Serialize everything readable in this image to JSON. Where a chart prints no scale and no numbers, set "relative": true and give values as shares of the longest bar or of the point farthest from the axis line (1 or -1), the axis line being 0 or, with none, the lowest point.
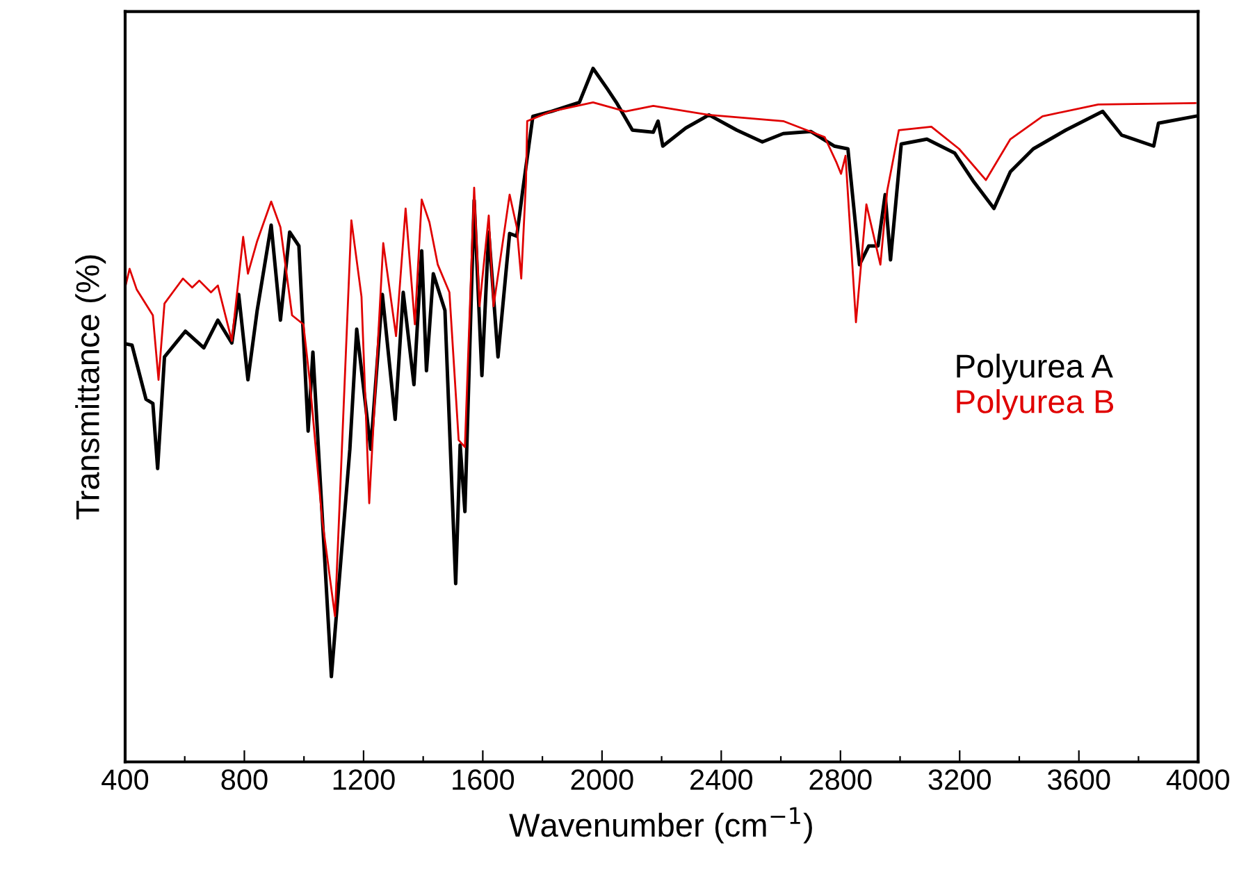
{
  "chart_data": {
    "type": "line",
    "relative": true,
    "xlabel": "Wavenumber (cm$^{−1}$)",
    "ylabel": "Transmittance (%)",
    "xlim": [
      400,
      4000
    ],
    "xticks": [
      400,
      {
        "value": 600,
        "label": null
      },
      800,
      {
        "value": 1000,
        "label": null
      },
      1200,
      {
        "value": 1400,
        "label": null
      },
      1600,
      {
        "value": 1800,
        "label": null
      },
      2000,
      {
        "value": 2200,
        "label": null
      },
      2400,
      {
        "value": 2600,
        "label": null
      },
      2800,
      {
        "value": 3000,
        "label": null
      },
      3200,
      {
        "value": 3400,
        "label": null
      },
      3600,
      {
        "value": 3800,
        "label": null
      },
      4000
    ],
    "legend": "right",
    "grid": false,
    "series": [
      {
        "name": "Polyurea A",
        "color": "#000000",
        "x": [
          400,
          423,
          470,
          493,
          509,
          532,
          602,
          664,
          711,
          758,
          781,
          812,
          843,
          890,
          921,
          952,
          983,
          1014,
          1030,
          1092,
          1154,
          1177,
          1224,
          1263,
          1306,
          1333,
          1369,
          1395,
          1411,
          1434,
          1473,
          1509,
          1524,
          1540,
          1571,
          1597,
          1620,
          1651,
          1690,
          1714,
          1734,
          1768,
          1830,
          1924,
          1970,
          2017,
          2048,
          2102,
          2172,
          2188,
          2204,
          2281,
          2359,
          2452,
          2538,
          2608,
          2701,
          2779,
          2825,
          2864,
          2895,
          2926,
          2950,
          2968,
          3004,
          3090,
          3183,
          3245,
          3315,
          3370,
          3447,
          3556,
          3680,
          3743,
          3851,
          3867,
          3991
        ],
        "values": [
          0.603,
          0.601,
          0.523,
          0.517,
          0.423,
          0.584,
          0.621,
          0.597,
          0.637,
          0.604,
          0.674,
          0.551,
          0.651,
          0.774,
          0.637,
          0.764,
          0.744,
          0.477,
          0.591,
          0.123,
          0.451,
          0.624,
          0.451,
          0.674,
          0.494,
          0.677,
          0.544,
          0.737,
          0.564,
          0.704,
          0.651,
          0.257,
          0.457,
          0.361,
          0.81,
          0.557,
          0.764,
          0.584,
          0.762,
          0.758,
          0.824,
          0.931,
          0.938,
          0.951,
          1.0,
          0.971,
          0.951,
          0.911,
          0.908,
          0.924,
          0.888,
          0.914,
          0.933,
          0.911,
          0.894,
          0.906,
          0.909,
          0.888,
          0.884,
          0.717,
          0.744,
          0.744,
          0.818,
          0.724,
          0.891,
          0.898,
          0.878,
          0.838,
          0.798,
          0.851,
          0.884,
          0.911,
          0.938,
          0.904,
          0.888,
          0.921,
          0.931
        ]
      },
      {
        "name": "Polyurea B",
        "color": "#e00000",
        "x": [
          400,
          415,
          439,
          493,
          512,
          532,
          594,
          625,
          649,
          688,
          711,
          758,
          796,
          812,
          843,
          890,
          921,
          960,
          998,
          1019,
          1061,
          1104,
          1159,
          1193,
          1219,
          1266,
          1309,
          1341,
          1372,
          1395,
          1421,
          1449,
          1488,
          1519,
          1540,
          1571,
          1589,
          1620,
          1636,
          1690,
          1714,
          1729,
          1745,
          1749,
          1830,
          1970,
          2079,
          2172,
          2359,
          2608,
          2747,
          2787,
          2802,
          2817,
          2852,
          2887,
          2934,
          2957,
          2996,
          3105,
          3198,
          3288,
          3370,
          3478,
          3665,
          3991
        ],
        "values": [
          0.684,
          0.711,
          0.681,
          0.644,
          0.551,
          0.661,
          0.697,
          0.684,
          0.694,
          0.677,
          0.687,
          0.607,
          0.757,
          0.704,
          0.751,
          0.808,
          0.771,
          0.644,
          0.631,
          0.551,
          0.35,
          0.21,
          0.781,
          0.671,
          0.373,
          0.748,
          0.614,
          0.798,
          0.631,
          0.811,
          0.778,
          0.717,
          0.677,
          0.464,
          0.454,
          0.828,
          0.657,
          0.788,
          0.657,
          0.818,
          0.771,
          0.697,
          0.838,
          0.924,
          0.938,
          0.951,
          0.938,
          0.946,
          0.933,
          0.924,
          0.901,
          0.864,
          0.848,
          0.874,
          0.634,
          0.804,
          0.717,
          0.824,
          0.911,
          0.916,
          0.884,
          0.839,
          0.898,
          0.931,
          0.948,
          0.95
        ]
      }
    ]
  }
}
